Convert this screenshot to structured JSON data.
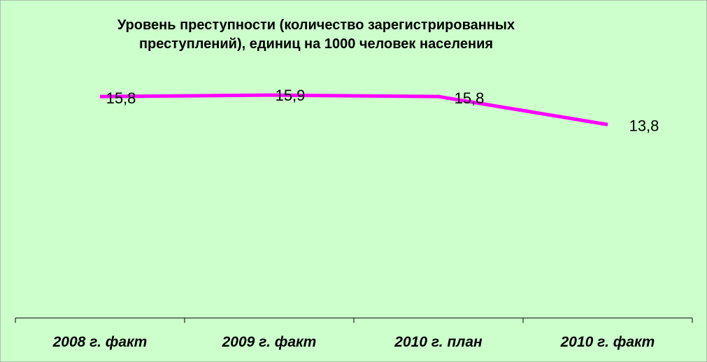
{
  "chart_data": {
    "type": "line",
    "title": "Уровень преступности (количество зарегистрированных преступлений), единиц на 1000 человек населения",
    "title_lines": [
      "Уровень преступности (количество зарегистрированных",
      "преступлений), единиц на 1000 человек населения"
    ],
    "categories": [
      "2008 г. факт",
      "2009 г. факт",
      "2010  г. план",
      "2010  г. факт"
    ],
    "series": [
      {
        "values": [
          15.8,
          15.9,
          15.8,
          13.8
        ],
        "color": "#ff00ff"
      }
    ],
    "data_labels": [
      "15,8",
      "15,9",
      "15,8",
      "13,8"
    ],
    "ylim": [
      0,
      18.5
    ],
    "xlabel": "",
    "ylabel": "",
    "grid": false,
    "legend": "none"
  },
  "colors": {
    "background": "#ccffcc",
    "line": "#ff00ff",
    "axis": "#000000"
  }
}
